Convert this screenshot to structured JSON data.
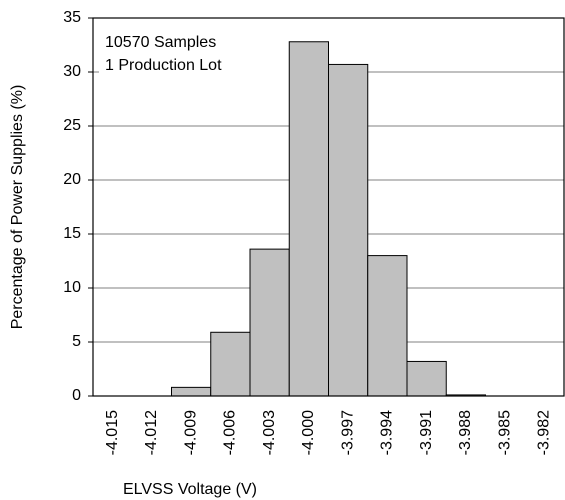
{
  "chart_data": {
    "type": "bar",
    "xlabel": "ELVSS Voltage (V)",
    "ylabel": "Percentage of Power Supplies (%)",
    "annotations": [
      "10570 Samples",
      "1 Production Lot"
    ],
    "categories": [
      "-4.015",
      "-4.012",
      "-4.009",
      "-4.006",
      "-4.003",
      "-4.000",
      "-3.997",
      "-3.994",
      "-3.991",
      "-3.988",
      "-3.985",
      "-3.982"
    ],
    "values": [
      0,
      0,
      0.8,
      5.9,
      13.6,
      32.8,
      30.7,
      13.0,
      3.2,
      0.1,
      0,
      0
    ],
    "color": "#c0c0c0",
    "ylim": [
      0,
      35
    ],
    "yticks": [
      0,
      5,
      10,
      15,
      20,
      25,
      30,
      35
    ],
    "grid": true
  }
}
